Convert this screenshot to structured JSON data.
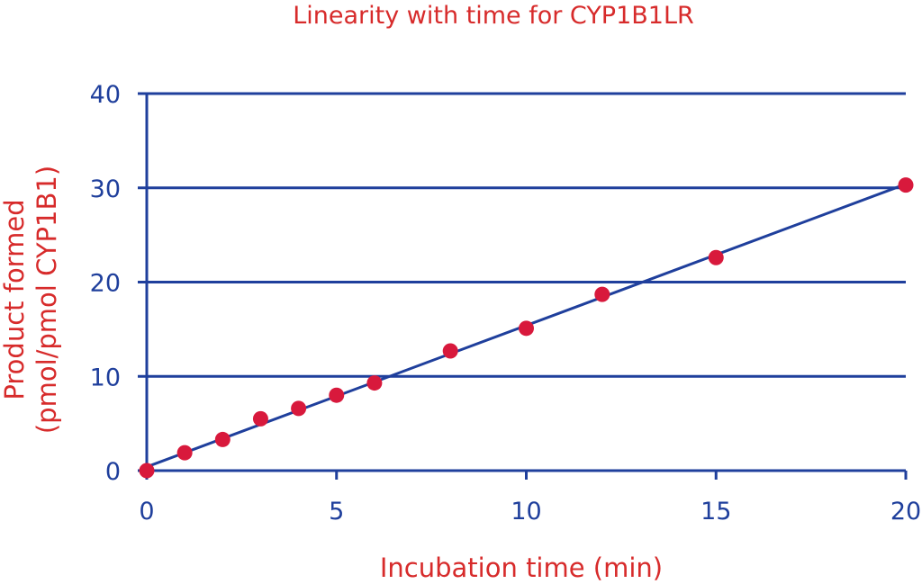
{
  "chart_data": {
    "type": "scatter",
    "title": "Linearity with time for CYP1B1LR",
    "xlabel": "Incubation time (min)",
    "ylabel_lines": [
      "Product formed",
      "(pmol/pmol CYP1B1)"
    ],
    "xlim": [
      0,
      20
    ],
    "ylim": [
      0,
      40
    ],
    "x_ticks": [
      0,
      5,
      10,
      15,
      20
    ],
    "y_ticks": [
      0,
      10,
      20,
      30,
      40
    ],
    "grid": "horizontal",
    "points": [
      {
        "x": 0,
        "y": 0.0
      },
      {
        "x": 1,
        "y": 1.9
      },
      {
        "x": 2,
        "y": 3.3
      },
      {
        "x": 3,
        "y": 5.5
      },
      {
        "x": 4,
        "y": 6.6
      },
      {
        "x": 5,
        "y": 8.0
      },
      {
        "x": 6,
        "y": 9.3
      },
      {
        "x": 8,
        "y": 12.7
      },
      {
        "x": 10,
        "y": 15.1
      },
      {
        "x": 12,
        "y": 18.7
      },
      {
        "x": 15,
        "y": 22.6
      },
      {
        "x": 20,
        "y": 30.3
      }
    ],
    "fit_line": {
      "x": [
        0,
        20
      ],
      "y": [
        0.4,
        30.4
      ]
    },
    "colors": {
      "axis": "#1f3f9c",
      "marker": "#d8193c",
      "text": "#d72b2b",
      "line": "#1f3f9c"
    }
  }
}
